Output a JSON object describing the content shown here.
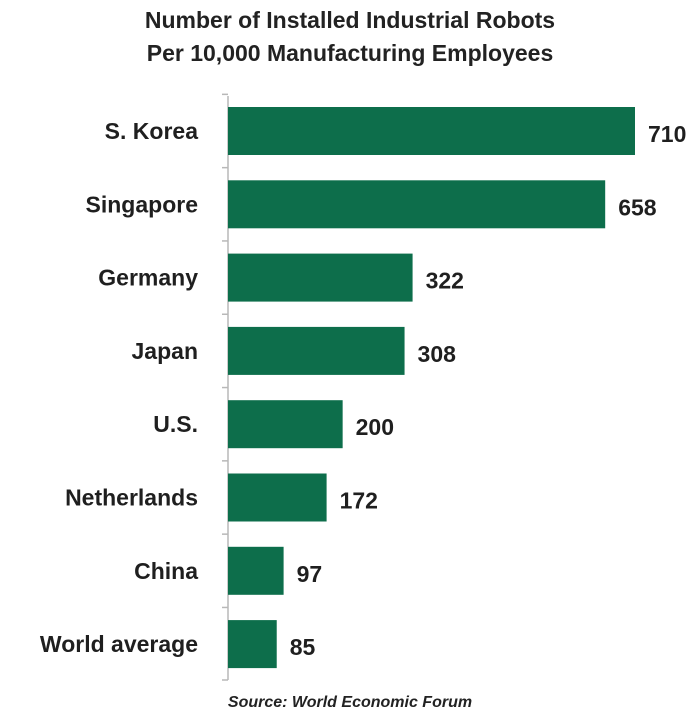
{
  "chart_data": {
    "type": "bar",
    "orientation": "horizontal",
    "title_lines": [
      "Number of Installed Industrial Robots",
      "Per 10,000 Manufacturing Employees"
    ],
    "categories": [
      "S. Korea",
      "Singapore",
      "Germany",
      "Japan",
      "U.S.",
      "Netherlands",
      "China",
      "World average"
    ],
    "values": [
      710,
      658,
      322,
      308,
      200,
      172,
      97,
      85
    ],
    "value_labels": [
      "710",
      "658",
      "322",
      "308",
      "200",
      "172",
      "97",
      "85"
    ],
    "xlim": [
      0,
      710
    ],
    "xlabel": "",
    "ylabel": "",
    "grid": false,
    "legend": "none",
    "bar_color": "#0d6e4b",
    "axis_color": "#b8b8b8"
  },
  "source": "Source: World Economic Forum"
}
